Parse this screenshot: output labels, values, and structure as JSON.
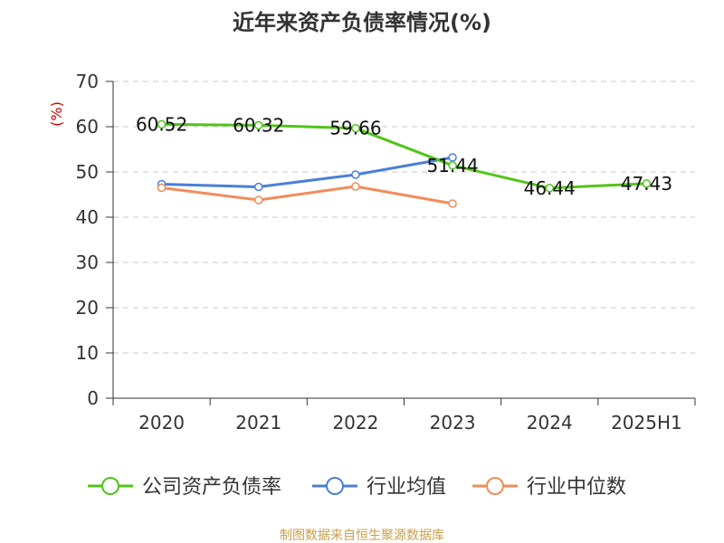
{
  "chart_data": {
    "type": "line",
    "title": "近年来资产负债率情况(%)",
    "ylabel": "(%)",
    "xlabel": "",
    "categories": [
      "2020",
      "2021",
      "2022",
      "2023",
      "2024",
      "2025H1"
    ],
    "ylim": [
      0,
      70
    ],
    "yticks": [
      0,
      10,
      20,
      30,
      40,
      50,
      60,
      70
    ],
    "grid": true,
    "legend_position": "bottom",
    "series": [
      {
        "name": "公司资产负债率",
        "color": "#52c41a",
        "values": [
          60.52,
          60.32,
          59.66,
          51.44,
          46.44,
          47.43
        ],
        "labels": [
          "60.52",
          "60.32",
          "59.66",
          "51.44",
          "46.44",
          "47.43"
        ]
      },
      {
        "name": "行业均值",
        "color": "#4a7fd8",
        "values": [
          47.3,
          46.7,
          49.4,
          53.2,
          null,
          null
        ]
      },
      {
        "name": "行业中位数",
        "color": "#f28c5a",
        "values": [
          46.5,
          43.8,
          46.8,
          43.0,
          null,
          null
        ]
      }
    ]
  },
  "source": "制图数据来自恒生聚源数据库"
}
